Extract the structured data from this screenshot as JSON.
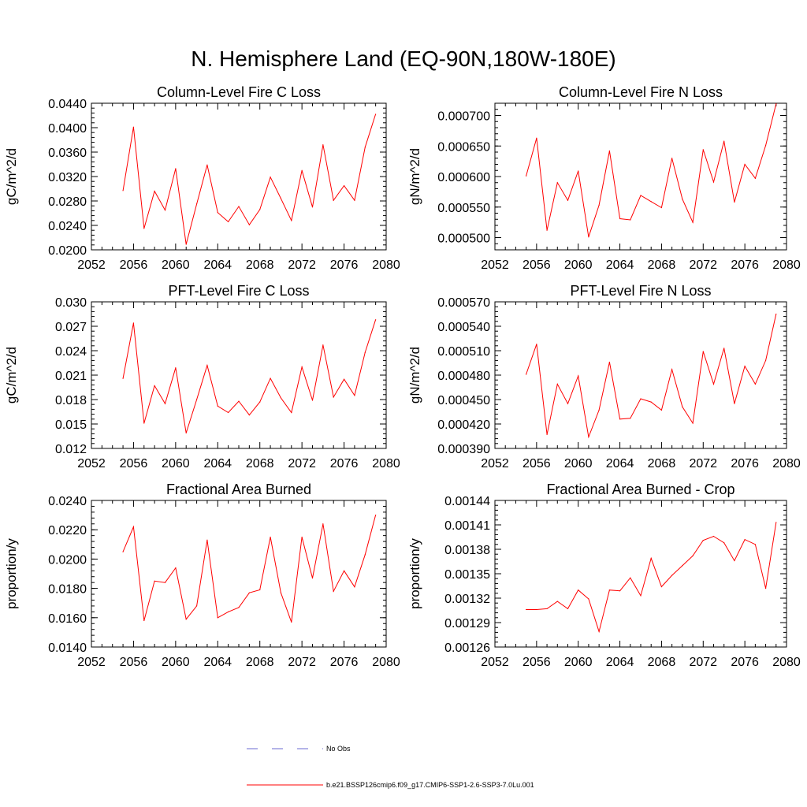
{
  "figure": {
    "title": "N. Hemisphere Land (EQ-90N,180W-180E)"
  },
  "legend": [
    {
      "label": "No Obs",
      "color": "#6a6ad0",
      "dash": "dashed"
    },
    {
      "label": "b.e21.BSSP126cmip6.f09_g17.CMIP6-SSP1-2.6-SSP3-7.0Lu.001",
      "color": "#ff0000",
      "dash": "solid"
    }
  ],
  "chart_data": [
    {
      "type": "line",
      "title": "Column-Level Fire C Loss",
      "ylabel": "gC/m^2/d",
      "xlabel": "",
      "xlim": [
        2052,
        2080
      ],
      "xticks": [
        "2052",
        "2056",
        "2060",
        "2064",
        "2068",
        "2072",
        "2076",
        "2080"
      ],
      "ylim": [
        0.02,
        0.044
      ],
      "yticks": [
        "0.0200",
        "0.0240",
        "0.0280",
        "0.0320",
        "0.0360",
        "0.0400",
        "0.0440"
      ],
      "color": "#ff0000",
      "x": [
        2055,
        2056,
        2057,
        2058,
        2059,
        2060,
        2061,
        2062,
        2063,
        2064,
        2065,
        2066,
        2067,
        2068,
        2069,
        2070,
        2071,
        2072,
        2073,
        2074,
        2075,
        2076,
        2077,
        2078,
        2079
      ],
      "y": [
        0.0297,
        0.0401,
        0.0235,
        0.0296,
        0.0265,
        0.0333,
        0.0209,
        0.0275,
        0.0339,
        0.0261,
        0.0246,
        0.0271,
        0.0241,
        0.0266,
        0.0319,
        0.0284,
        0.0248,
        0.033,
        0.027,
        0.0372,
        0.0281,
        0.0305,
        0.0281,
        0.0368,
        0.0422
      ]
    },
    {
      "type": "line",
      "title": "Column-Level Fire N Loss",
      "ylabel": "gN/m^2/d",
      "xlabel": "",
      "xlim": [
        2052,
        2080
      ],
      "xticks": [
        "2052",
        "2056",
        "2060",
        "2064",
        "2068",
        "2072",
        "2076",
        "2080"
      ],
      "ylim": [
        0.00048,
        0.00072
      ],
      "yticks": [
        "0.000500",
        "0.000550",
        "0.000600",
        "0.000650",
        "0.000700"
      ],
      "ytick_values": [
        0.0005,
        0.00055,
        0.0006,
        0.00065,
        0.0007
      ],
      "color": "#ff0000",
      "x": [
        2055,
        2056,
        2057,
        2058,
        2059,
        2060,
        2061,
        2062,
        2063,
        2064,
        2065,
        2066,
        2067,
        2068,
        2069,
        2070,
        2071,
        2072,
        2073,
        2074,
        2075,
        2076,
        2077,
        2078,
        2079
      ],
      "y": [
        0.000601,
        0.000663,
        0.000512,
        0.00059,
        0.000561,
        0.000609,
        0.000501,
        0.000553,
        0.000642,
        0.000531,
        0.000529,
        0.000569,
        0.000559,
        0.000549,
        0.00063,
        0.000563,
        0.000525,
        0.000644,
        0.000591,
        0.000658,
        0.000558,
        0.00062,
        0.000597,
        0.000651,
        0.000719
      ]
    },
    {
      "type": "line",
      "title": "PFT-Level Fire C Loss",
      "ylabel": "gC/m^2/d",
      "xlabel": "",
      "xlim": [
        2052,
        2080
      ],
      "xticks": [
        "2052",
        "2056",
        "2060",
        "2064",
        "2068",
        "2072",
        "2076",
        "2080"
      ],
      "ylim": [
        0.012,
        0.03
      ],
      "yticks": [
        "0.012",
        "0.015",
        "0.018",
        "0.021",
        "0.024",
        "0.027",
        "0.030"
      ],
      "color": "#ff0000",
      "x": [
        2055,
        2056,
        2057,
        2058,
        2059,
        2060,
        2061,
        2062,
        2063,
        2064,
        2065,
        2066,
        2067,
        2068,
        2069,
        2070,
        2071,
        2072,
        2073,
        2074,
        2075,
        2076,
        2077,
        2078,
        2079
      ],
      "y": [
        0.0206,
        0.0274,
        0.0151,
        0.0197,
        0.0175,
        0.0219,
        0.0139,
        0.018,
        0.0222,
        0.0172,
        0.0164,
        0.0178,
        0.0161,
        0.0177,
        0.0206,
        0.0182,
        0.0164,
        0.022,
        0.0179,
        0.0247,
        0.0183,
        0.0205,
        0.0185,
        0.0238,
        0.0278
      ]
    },
    {
      "type": "line",
      "title": "PFT-Level Fire N Loss",
      "ylabel": "gN/m^2/d",
      "xlabel": "",
      "xlim": [
        2052,
        2080
      ],
      "xticks": [
        "2052",
        "2056",
        "2060",
        "2064",
        "2068",
        "2072",
        "2076",
        "2080"
      ],
      "ylim": [
        0.00039,
        0.00057
      ],
      "yticks": [
        "0.000390",
        "0.000420",
        "0.000450",
        "0.000480",
        "0.000510",
        "0.000540",
        "0.000570"
      ],
      "color": "#ff0000",
      "x": [
        2055,
        2056,
        2057,
        2058,
        2059,
        2060,
        2061,
        2062,
        2063,
        2064,
        2065,
        2066,
        2067,
        2068,
        2069,
        2070,
        2071,
        2072,
        2073,
        2074,
        2075,
        2076,
        2077,
        2078,
        2079
      ],
      "y": [
        0.000481,
        0.000518,
        0.000407,
        0.000469,
        0.000445,
        0.000479,
        0.000404,
        0.000437,
        0.000496,
        0.000426,
        0.000427,
        0.000451,
        0.000447,
        0.000437,
        0.000487,
        0.000441,
        0.000421,
        0.000509,
        0.000469,
        0.000513,
        0.000445,
        0.000491,
        0.000469,
        0.000498,
        0.000555
      ]
    },
    {
      "type": "line",
      "title": "Fractional Area Burned",
      "ylabel": "proportion/y",
      "xlabel": "",
      "xlim": [
        2052,
        2080
      ],
      "xticks": [
        "2052",
        "2056",
        "2060",
        "2064",
        "2068",
        "2072",
        "2076",
        "2080"
      ],
      "ylim": [
        0.014,
        0.024
      ],
      "yticks": [
        "0.0140",
        "0.0160",
        "0.0180",
        "0.0200",
        "0.0220",
        "0.0240"
      ],
      "color": "#ff0000",
      "x": [
        2055,
        2056,
        2057,
        2058,
        2059,
        2060,
        2061,
        2062,
        2063,
        2064,
        2065,
        2066,
        2067,
        2068,
        2069,
        2070,
        2071,
        2072,
        2073,
        2074,
        2075,
        2076,
        2077,
        2078,
        2079
      ],
      "y": [
        0.0205,
        0.0222,
        0.0158,
        0.0185,
        0.0184,
        0.0194,
        0.0159,
        0.0168,
        0.0213,
        0.016,
        0.0164,
        0.0167,
        0.0177,
        0.0179,
        0.0215,
        0.0177,
        0.0157,
        0.0215,
        0.0187,
        0.0224,
        0.0178,
        0.0192,
        0.0181,
        0.0203,
        0.023
      ]
    },
    {
      "type": "line",
      "title": "Fractional Area Burned - Crop",
      "ylabel": "proportion/y",
      "xlabel": "",
      "xlim": [
        2052,
        2080
      ],
      "xticks": [
        "2052",
        "2056",
        "2060",
        "2064",
        "2068",
        "2072",
        "2076",
        "2080"
      ],
      "ylim": [
        0.00126,
        0.00144
      ],
      "yticks": [
        "0.00126",
        "0.00129",
        "0.00132",
        "0.00135",
        "0.00138",
        "0.00141",
        "0.00144"
      ],
      "color": "#ff0000",
      "x": [
        2055,
        2056,
        2057,
        2058,
        2059,
        2060,
        2061,
        2062,
        2063,
        2064,
        2065,
        2066,
        2067,
        2068,
        2069,
        2070,
        2071,
        2072,
        2073,
        2074,
        2075,
        2076,
        2077,
        2078,
        2079
      ],
      "y": [
        0.001306,
        0.001306,
        0.001307,
        0.001316,
        0.001307,
        0.00133,
        0.001319,
        0.001279,
        0.00133,
        0.001329,
        0.001345,
        0.001323,
        0.001369,
        0.001334,
        0.001348,
        0.00136,
        0.001372,
        0.001391,
        0.001396,
        0.001388,
        0.001366,
        0.001392,
        0.001386,
        0.001332,
        0.001413
      ]
    }
  ]
}
